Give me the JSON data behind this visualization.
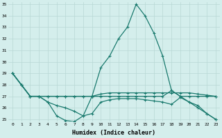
{
  "xlabel": "Humidex (Indice chaleur)",
  "xlim": [
    -0.5,
    23.5
  ],
  "ylim": [
    24.8,
    35.2
  ],
  "xticks": [
    0,
    1,
    2,
    3,
    4,
    5,
    6,
    7,
    8,
    9,
    10,
    11,
    12,
    13,
    14,
    15,
    16,
    17,
    18,
    19,
    20,
    21,
    22,
    23
  ],
  "yticks": [
    25,
    26,
    27,
    28,
    29,
    30,
    31,
    32,
    33,
    34,
    35
  ],
  "bg_color": "#d4eeec",
  "grid_color": "#b8d8d4",
  "line_color": "#1a7a6e",
  "series": [
    [
      29.0,
      28.0,
      27.0,
      27.0,
      26.5,
      25.3,
      24.9,
      24.8,
      25.3,
      27.0,
      29.5,
      30.5,
      32.0,
      33.0,
      35.0,
      34.0,
      32.5,
      30.5,
      27.5,
      27.0,
      26.5,
      26.0,
      25.5,
      25.0
    ],
    [
      29.0,
      28.0,
      27.0,
      27.0,
      27.0,
      27.0,
      27.0,
      27.0,
      27.0,
      27.0,
      27.0,
      27.0,
      27.0,
      27.0,
      27.0,
      27.0,
      27.0,
      27.0,
      27.5,
      27.0,
      27.0,
      27.0,
      27.0,
      27.0
    ],
    [
      29.0,
      28.0,
      27.0,
      27.0,
      27.0,
      27.0,
      27.0,
      27.0,
      27.0,
      27.0,
      27.2,
      27.3,
      27.3,
      27.3,
      27.3,
      27.3,
      27.3,
      27.3,
      27.3,
      27.3,
      27.3,
      27.2,
      27.1,
      27.0
    ],
    [
      29.0,
      28.0,
      27.0,
      27.0,
      26.5,
      26.2,
      26.0,
      25.7,
      25.3,
      25.5,
      26.5,
      26.7,
      26.8,
      26.8,
      26.8,
      26.7,
      26.6,
      26.5,
      26.3,
      26.9,
      26.5,
      26.2,
      25.5,
      25.0
    ]
  ]
}
